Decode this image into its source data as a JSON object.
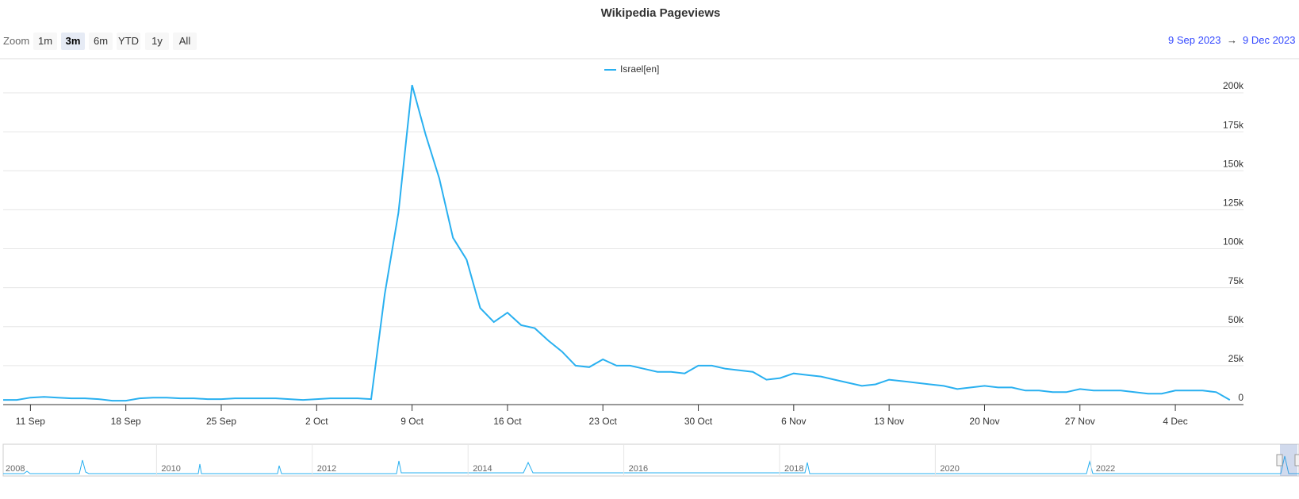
{
  "toolbar": {
    "zoom_label": "Zoom",
    "buttons": [
      "1m",
      "3m",
      "6m",
      "YTD",
      "1y",
      "All"
    ],
    "selected": "3m",
    "range_from": "9 Sep 2023",
    "range_arrow": "→",
    "range_to": "9 Dec 2023"
  },
  "chart_data": {
    "type": "line",
    "title": "Wikipedia Pageviews",
    "x": [
      "2023-09-09",
      "2023-09-10",
      "2023-09-11",
      "2023-09-12",
      "2023-09-13",
      "2023-09-14",
      "2023-09-15",
      "2023-09-16",
      "2023-09-17",
      "2023-09-18",
      "2023-09-19",
      "2023-09-20",
      "2023-09-21",
      "2023-09-22",
      "2023-09-23",
      "2023-09-24",
      "2023-09-25",
      "2023-09-26",
      "2023-09-27",
      "2023-09-28",
      "2023-09-29",
      "2023-09-30",
      "2023-10-01",
      "2023-10-02",
      "2023-10-03",
      "2023-10-04",
      "2023-10-05",
      "2023-10-06",
      "2023-10-07",
      "2023-10-08",
      "2023-10-09",
      "2023-10-10",
      "2023-10-11",
      "2023-10-12",
      "2023-10-13",
      "2023-10-14",
      "2023-10-15",
      "2023-10-16",
      "2023-10-17",
      "2023-10-18",
      "2023-10-19",
      "2023-10-20",
      "2023-10-21",
      "2023-10-22",
      "2023-10-23",
      "2023-10-24",
      "2023-10-25",
      "2023-10-26",
      "2023-10-27",
      "2023-10-28",
      "2023-10-29",
      "2023-10-30",
      "2023-10-31",
      "2023-11-01",
      "2023-11-02",
      "2023-11-03",
      "2023-11-04",
      "2023-11-05",
      "2023-11-06",
      "2023-11-07",
      "2023-11-08",
      "2023-11-09",
      "2023-11-10",
      "2023-11-11",
      "2023-11-12",
      "2023-11-13",
      "2023-11-14",
      "2023-11-15",
      "2023-11-16",
      "2023-11-17",
      "2023-11-18",
      "2023-11-19",
      "2023-11-20",
      "2023-11-21",
      "2023-11-22",
      "2023-11-23",
      "2023-11-24",
      "2023-11-25",
      "2023-11-26",
      "2023-11-27",
      "2023-11-28",
      "2023-11-29",
      "2023-11-30",
      "2023-12-01",
      "2023-12-02",
      "2023-12-03",
      "2023-12-04",
      "2023-12-05",
      "2023-12-06",
      "2023-12-07",
      "2023-12-08"
    ],
    "series": [
      {
        "name": "Israel[en]",
        "color": "#29b0f0",
        "values": [
          3000,
          3000,
          4500,
          5000,
          4500,
          4000,
          4000,
          3500,
          2500,
          2500,
          4000,
          4500,
          4500,
          4000,
          4000,
          3500,
          3500,
          4000,
          4000,
          4000,
          4000,
          3500,
          3000,
          3500,
          4000,
          4000,
          4000,
          3500,
          71000,
          123000,
          205000,
          173000,
          145000,
          107000,
          93000,
          62000,
          53000,
          59000,
          51000,
          49000,
          41000,
          34000,
          25000,
          24000,
          29000,
          25000,
          25000,
          23000,
          21000,
          21000,
          20000,
          25000,
          25000,
          23000,
          22000,
          21000,
          16000,
          17000,
          20000,
          19000,
          18000,
          16000,
          14000,
          12000,
          13000,
          16000,
          15000,
          14000,
          13000,
          12000,
          10000,
          11000,
          12000,
          11000,
          11000,
          9000,
          9000,
          8000,
          8000,
          10000,
          9000,
          9000,
          9000,
          8000,
          7000,
          7000,
          9000,
          9000,
          9000,
          8000,
          3000
        ]
      }
    ],
    "xlim": [
      "2023-09-09",
      "2023-12-09"
    ],
    "xticks": [
      {
        "value": "2023-09-11",
        "label": "11 Sep"
      },
      {
        "value": "2023-09-18",
        "label": "18 Sep"
      },
      {
        "value": "2023-09-25",
        "label": "25 Sep"
      },
      {
        "value": "2023-10-02",
        "label": "2 Oct"
      },
      {
        "value": "2023-10-09",
        "label": "9 Oct"
      },
      {
        "value": "2023-10-16",
        "label": "16 Oct"
      },
      {
        "value": "2023-10-23",
        "label": "23 Oct"
      },
      {
        "value": "2023-10-30",
        "label": "30 Oct"
      },
      {
        "value": "2023-11-06",
        "label": "6 Nov"
      },
      {
        "value": "2023-11-13",
        "label": "13 Nov"
      },
      {
        "value": "2023-11-20",
        "label": "20 Nov"
      },
      {
        "value": "2023-11-27",
        "label": "27 Nov"
      },
      {
        "value": "2023-12-04",
        "label": "4 Dec"
      }
    ],
    "ylim": [
      0,
      200000
    ],
    "yticks": [
      0,
      {
        "value": 25000,
        "label": "25k"
      },
      {
        "value": 50000,
        "label": "50k"
      },
      {
        "value": 75000,
        "label": "75k"
      },
      {
        "value": 100000,
        "label": "100k"
      },
      {
        "value": 125000,
        "label": "125k"
      },
      {
        "value": 150000,
        "label": "150k"
      },
      {
        "value": 175000,
        "label": "175k"
      },
      {
        "value": 200000,
        "label": "200k"
      }
    ],
    "grid": true,
    "legend": "top",
    "navigator_labels": [
      "2008",
      "2010",
      "2012",
      "2014",
      "2016",
      "2018",
      "2020",
      "2022"
    ]
  }
}
